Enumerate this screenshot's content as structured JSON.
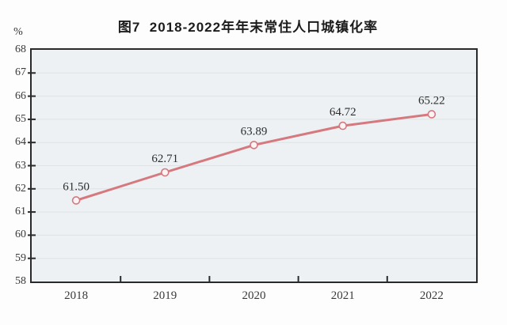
{
  "chart": {
    "title": "图7  2018-2022年年末常住人口城镇化率",
    "ylabel": "%"
  },
  "chart_data": {
    "type": "line",
    "title": "图7  2018-2022年年末常住人口城镇化率",
    "categories": [
      "2018",
      "2019",
      "2020",
      "2021",
      "2022"
    ],
    "values": [
      61.5,
      62.71,
      63.89,
      64.72,
      65.22
    ],
    "point_labels": [
      "61.50",
      "62.71",
      "63.89",
      "64.72",
      "65.22"
    ],
    "xlabel": "",
    "ylabel": "%",
    "ylim": [
      58,
      68
    ],
    "yticks": [
      58,
      59,
      60,
      61,
      62,
      63,
      64,
      65,
      66,
      67,
      68
    ],
    "grid": "horizontal-faint",
    "legend": "none",
    "marker": "open-circle",
    "colors": {
      "line": "#d5797f",
      "marker_fill": "#fcf4f4",
      "plot_bg": "#edf1f3",
      "page_bg": "#fdfdfd",
      "border": "#2a2a2a",
      "gridline": "#dde2e6",
      "label_text": "#2d2d2d",
      "tick_text": "#3a3a3a"
    }
  }
}
